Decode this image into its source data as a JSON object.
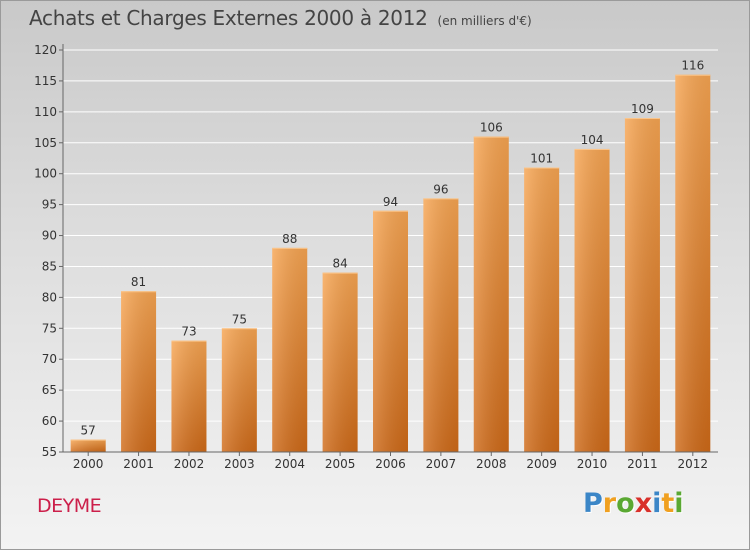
{
  "chart_data": {
    "type": "bar",
    "title": "Achats et Charges Externes 2000 à 2012",
    "subtitle": "(en milliers d'€)",
    "categories": [
      "2000",
      "2001",
      "2002",
      "2003",
      "2004",
      "2005",
      "2006",
      "2007",
      "2008",
      "2009",
      "2010",
      "2011",
      "2012"
    ],
    "values": [
      57,
      81,
      73,
      75,
      88,
      84,
      94,
      96,
      106,
      101,
      104,
      109,
      116
    ],
    "ylim": [
      55,
      120
    ],
    "yticks": [
      55,
      60,
      65,
      70,
      75,
      80,
      85,
      90,
      95,
      100,
      105,
      110,
      115,
      120
    ],
    "grid": true,
    "bar_color": "#f0943a",
    "xlabel": "",
    "ylabel": ""
  },
  "footer": {
    "commune": "DEYME",
    "logo": [
      "P",
      "r",
      "o",
      "x",
      "i",
      "t",
      "i"
    ],
    "logo_colors": [
      "#3b86c7",
      "#f0a020",
      "#5aa832",
      "#d9302a",
      "#3b86c7",
      "#f0a020",
      "#5aa832"
    ]
  }
}
